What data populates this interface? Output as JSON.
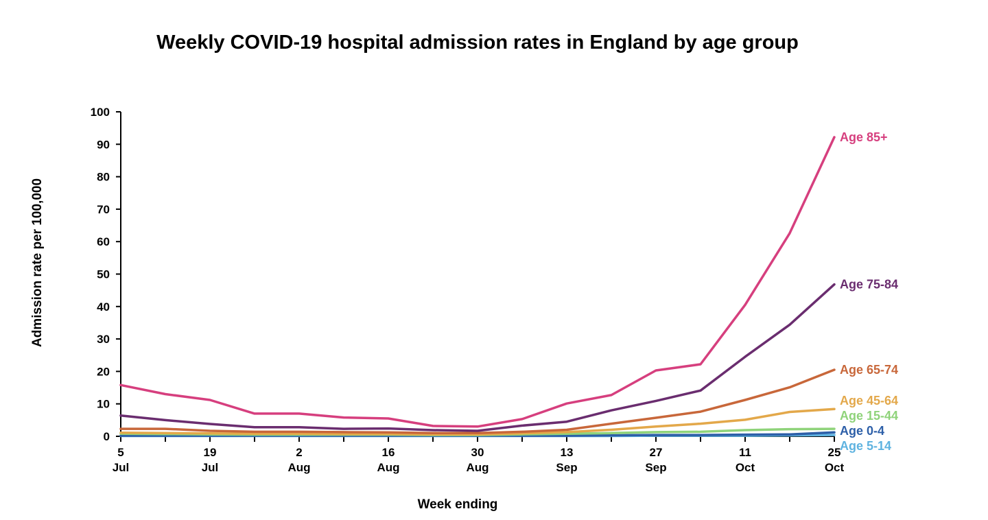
{
  "chart_data": {
    "type": "line",
    "title": "Weekly COVID-19 hospital admission rates in England by age group",
    "xlabel": "Week ending",
    "ylabel": "Admission rate per 100,000",
    "ylim": [
      0,
      100
    ],
    "yticks": [
      0,
      10,
      20,
      30,
      40,
      50,
      60,
      70,
      80,
      90,
      100
    ],
    "x": [
      "5 Jul",
      "12 Jul",
      "19 Jul",
      "26 Jul",
      "2 Aug",
      "9 Aug",
      "16 Aug",
      "23 Aug",
      "30 Aug",
      "6 Sep",
      "13 Sep",
      "20 Sep",
      "27 Sep",
      "4 Oct",
      "11 Oct",
      "18 Oct",
      "25 Oct"
    ],
    "xtick_labels": [
      {
        "day": "5",
        "month": "Jul"
      },
      {
        "day": "19",
        "month": "Jul"
      },
      {
        "day": "2",
        "month": "Aug"
      },
      {
        "day": "16",
        "month": "Aug"
      },
      {
        "day": "30",
        "month": "Aug"
      },
      {
        "day": "13",
        "month": "Sep"
      },
      {
        "day": "27",
        "month": "Sep"
      },
      {
        "day": "11",
        "month": "Oct"
      },
      {
        "day": "25",
        "month": "Oct"
      }
    ],
    "grid": false,
    "legend": "inline-right",
    "series": [
      {
        "name": "Age 85+",
        "color": "#d63f7e",
        "values": [
          15.8,
          13.0,
          11.2,
          7.0,
          7.0,
          5.8,
          5.5,
          3.2,
          3.0,
          5.3,
          10.1,
          12.7,
          20.3,
          22.2,
          40.5,
          62.6,
          92.2
        ]
      },
      {
        "name": "Age 75-84",
        "color": "#6a2d6f",
        "values": [
          6.4,
          5.0,
          3.8,
          2.8,
          2.8,
          2.3,
          2.4,
          1.9,
          1.7,
          3.3,
          4.5,
          8.0,
          10.9,
          14.1,
          24.5,
          34.4,
          46.8
        ]
      },
      {
        "name": "Age 65-74",
        "color": "#c8673a",
        "values": [
          2.3,
          2.3,
          1.7,
          1.4,
          1.4,
          1.3,
          1.2,
          1.0,
          1.0,
          1.4,
          2.0,
          3.9,
          5.7,
          7.6,
          11.2,
          15.1,
          20.5
        ]
      },
      {
        "name": "Age 45-64",
        "color": "#e3a84a",
        "values": [
          1.1,
          1.0,
          0.9,
          0.8,
          0.8,
          0.7,
          0.7,
          0.6,
          0.6,
          0.9,
          1.3,
          2.0,
          3.0,
          3.9,
          5.1,
          7.5,
          8.4
        ]
      },
      {
        "name": "Age 15-44",
        "color": "#8fd37a",
        "values": [
          0.8,
          0.7,
          0.6,
          0.5,
          0.5,
          0.5,
          0.5,
          0.4,
          0.4,
          0.6,
          0.8,
          1.0,
          1.3,
          1.4,
          1.9,
          2.2,
          2.3
        ]
      },
      {
        "name": "Age 0-4",
        "color": "#2d5fa8",
        "values": [
          0.2,
          0.2,
          0.2,
          0.2,
          0.2,
          0.2,
          0.2,
          0.2,
          0.2,
          0.2,
          0.2,
          0.3,
          0.4,
          0.4,
          0.5,
          0.6,
          1.2
        ]
      },
      {
        "name": "Age 5-14",
        "color": "#5fb3e0",
        "values": [
          0.1,
          0.1,
          0.1,
          0.1,
          0.1,
          0.1,
          0.1,
          0.1,
          0.1,
          0.1,
          0.1,
          0.1,
          0.2,
          0.2,
          0.2,
          0.3,
          0.4
        ]
      }
    ]
  }
}
